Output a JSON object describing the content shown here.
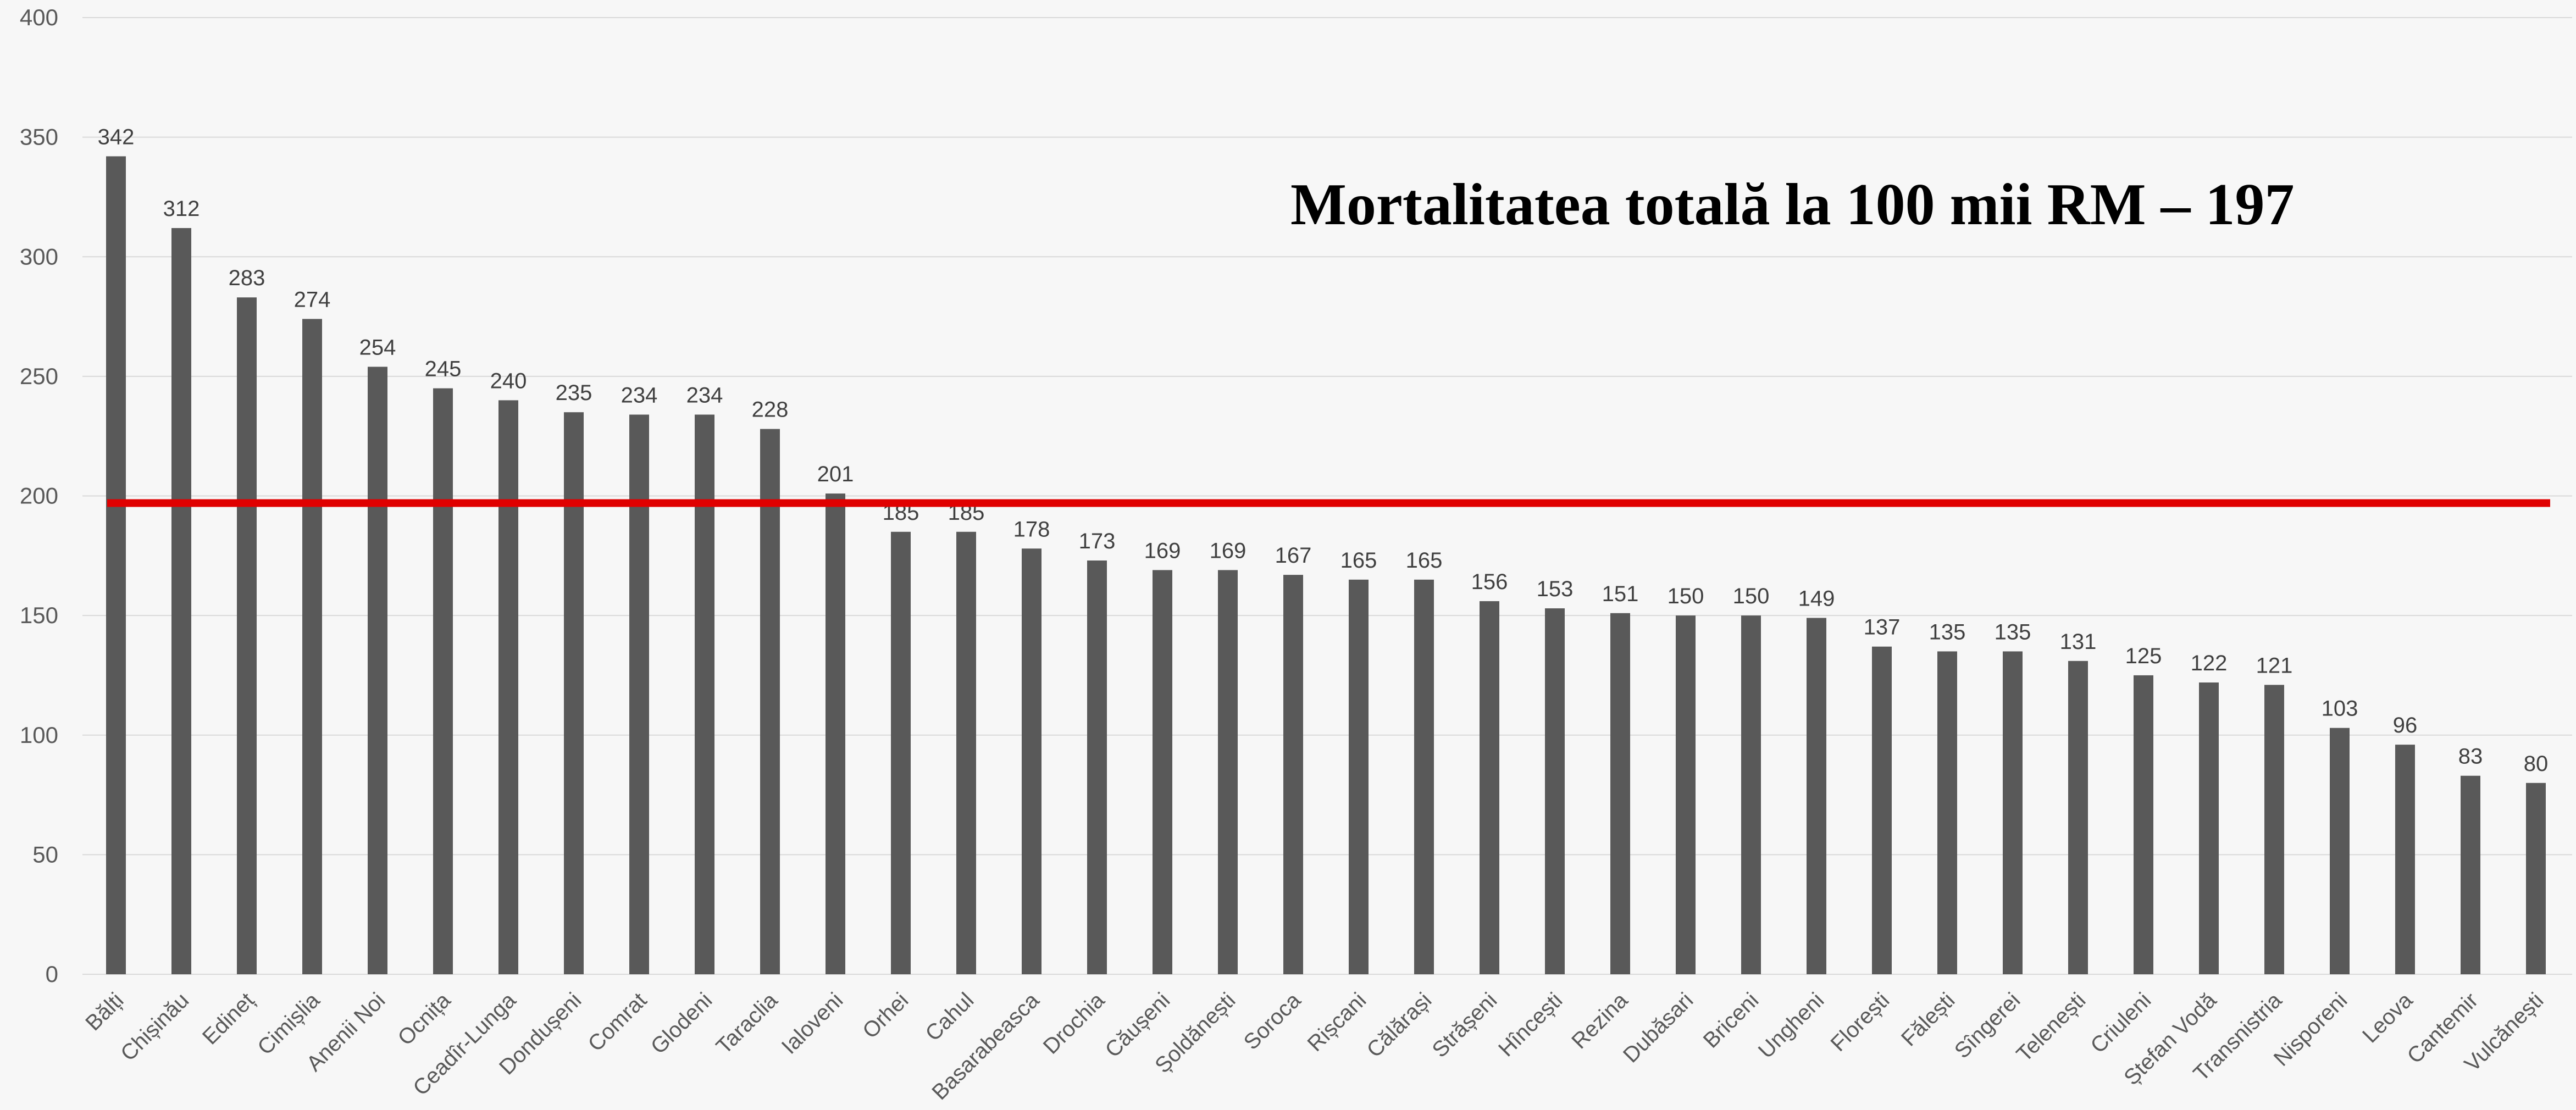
{
  "chart_data": {
    "type": "bar",
    "title": "Mortalitatea totală la 100 mii RM – 197",
    "reference_line": {
      "value": 197,
      "color": "#e00000"
    },
    "bar_color": "#595959",
    "grid": true,
    "ylim": [
      0,
      400
    ],
    "yticks": [
      "0",
      "50",
      "100",
      "150",
      "200",
      "250",
      "300",
      "350",
      "400"
    ],
    "categories": [
      "Bălți",
      "Chișinău",
      "Edineț",
      "Cimișlia",
      "Anenii Noi",
      "Ocnița",
      "Ceadîr-Lunga",
      "Dondușeni",
      "Comrat",
      "Glodeni",
      "Taraclia",
      "Ialoveni",
      "Orhei",
      "Cahul",
      "Basarabeasca",
      "Drochia",
      "Căușeni",
      "Șoldănești",
      "Soroca",
      "Rișcani",
      "Călărași",
      "Strășeni",
      "Hîncești",
      "Rezina",
      "Dubăsari",
      "Briceni",
      "Ungheni",
      "Florești",
      "Fălești",
      "Sîngerei",
      "Telenești",
      "Criuleni",
      "Ștefan Vodă",
      "Transnistria",
      "Nisporeni",
      "Leova",
      "Cantemir",
      "Vulcănești"
    ],
    "values": [
      342,
      312,
      283,
      274,
      254,
      245,
      240,
      235,
      234,
      234,
      228,
      201,
      185,
      185,
      178,
      173,
      169,
      169,
      167,
      165,
      165,
      156,
      153,
      151,
      150,
      150,
      149,
      137,
      135,
      135,
      131,
      125,
      122,
      121,
      103,
      96,
      83,
      80
    ]
  }
}
